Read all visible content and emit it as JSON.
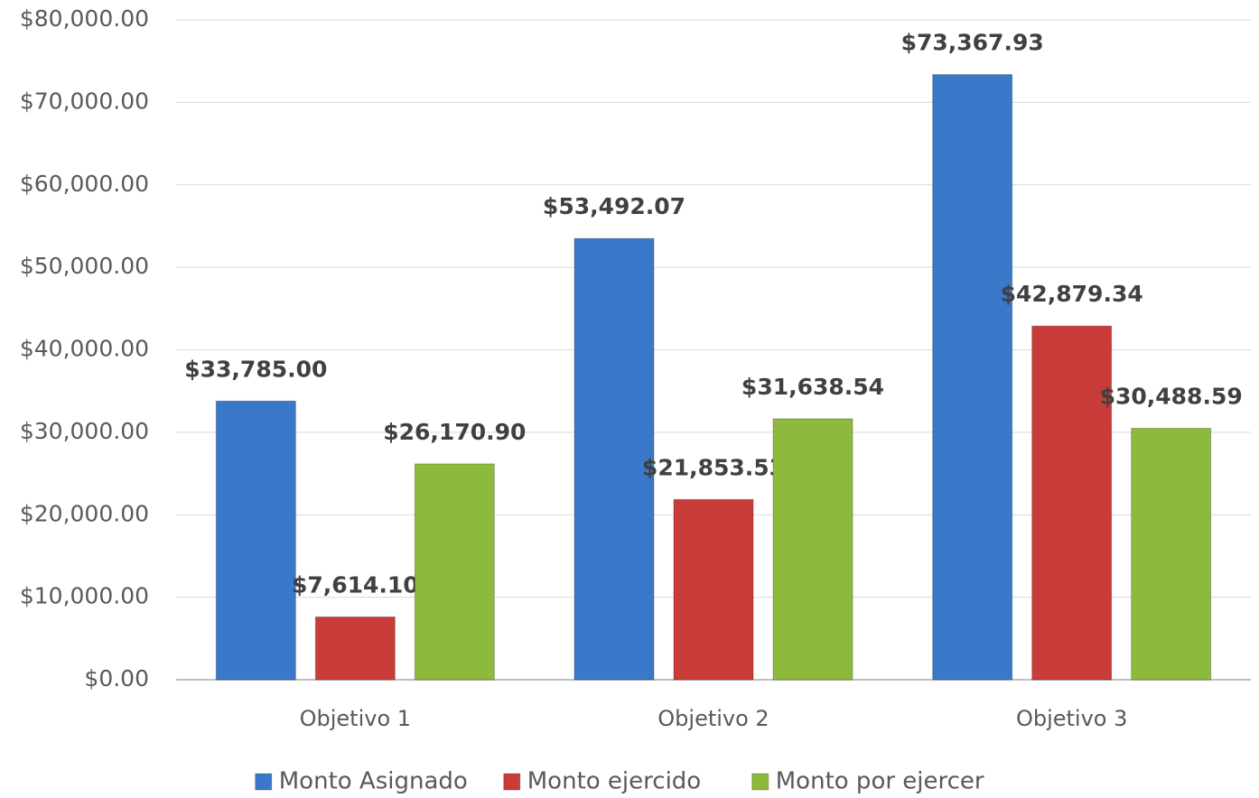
{
  "chart_data": {
    "type": "bar",
    "categories": [
      "Objetivo 1",
      "Objetivo 2",
      "Objetivo 3"
    ],
    "series": [
      {
        "name": "Monto Asignado",
        "color": "#3a78c9",
        "values": [
          33785.0,
          53492.07,
          73367.93
        ],
        "value_labels": [
          "$33,785.00",
          "$53,492.07",
          "$73,367.93"
        ]
      },
      {
        "name": "Monto ejercido",
        "color": "#c83c3a",
        "values": [
          7614.1,
          21853.53,
          42879.34
        ],
        "value_labels": [
          "$7,614.10",
          "$21,853.53",
          "$42,879.34"
        ]
      },
      {
        "name": "Monto por ejercer",
        "color": "#8dba3c",
        "values": [
          26170.9,
          31638.54,
          30488.59
        ],
        "value_labels": [
          "$26,170.90",
          "$31,638.54",
          "$30,488.59"
        ]
      }
    ],
    "ylim": [
      0,
      80000
    ],
    "yticks": [
      {
        "value": 0,
        "label": "$0.00"
      },
      {
        "value": 10000,
        "label": "$10,000.00"
      },
      {
        "value": 20000,
        "label": "$20,000.00"
      },
      {
        "value": 30000,
        "label": "$30,000.00"
      },
      {
        "value": 40000,
        "label": "$40,000.00"
      },
      {
        "value": 50000,
        "label": "$50,000.00"
      },
      {
        "value": 60000,
        "label": "$60,000.00"
      },
      {
        "value": 70000,
        "label": "$70,000.00"
      },
      {
        "value": 80000,
        "label": "$80,000.00"
      }
    ],
    "grid": true,
    "legend": "bottom"
  }
}
